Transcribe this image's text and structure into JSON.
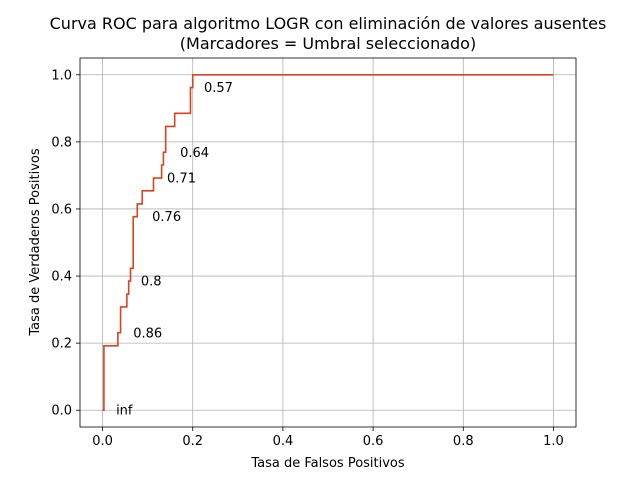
{
  "chart_data": {
    "type": "line",
    "title": "Curva ROC para algoritmo LOGR con eliminación de valores ausentes",
    "subtitle": "(Marcadores = Umbral seleccionado)",
    "xlabel": "Tasa de Falsos Positivos",
    "ylabel": "Tasa de Verdaderos Positivos",
    "xlim": [
      -0.05,
      1.05
    ],
    "ylim": [
      -0.05,
      1.05
    ],
    "xticks": [
      0.0,
      0.2,
      0.4,
      0.6,
      0.8,
      1.0
    ],
    "yticks": [
      0.0,
      0.2,
      0.4,
      0.6,
      0.8,
      1.0
    ],
    "xtick_labels": [
      "0.0",
      "0.2",
      "0.4",
      "0.6",
      "0.8",
      "1.0"
    ],
    "ytick_labels": [
      "0.0",
      "0.2",
      "0.4",
      "0.6",
      "0.8",
      "1.0"
    ],
    "grid": true,
    "line_color": "#d9441c",
    "series": [
      {
        "x": [
          0.0,
          0.0,
          0.0,
          0.003,
          0.003,
          0.034,
          0.034,
          0.04,
          0.04,
          0.054,
          0.054,
          0.058,
          0.058,
          0.062,
          0.062,
          0.068,
          0.068,
          0.077,
          0.077,
          0.088,
          0.088,
          0.113,
          0.113,
          0.131,
          0.131,
          0.135,
          0.135,
          0.14,
          0.14,
          0.16,
          0.16,
          0.195,
          0.195,
          0.2,
          0.2,
          1.0
        ],
        "y": [
          0.0,
          0.0,
          0.0,
          0.0,
          0.192,
          0.192,
          0.231,
          0.231,
          0.308,
          0.308,
          0.346,
          0.346,
          0.385,
          0.385,
          0.423,
          0.423,
          0.577,
          0.577,
          0.615,
          0.615,
          0.654,
          0.654,
          0.692,
          0.692,
          0.731,
          0.731,
          0.769,
          0.769,
          0.846,
          0.846,
          0.885,
          0.885,
          0.962,
          0.962,
          1.0,
          1.0
        ]
      }
    ],
    "annotations": [
      {
        "text": "inf",
        "x": 0.03,
        "y": 0.0
      },
      {
        "text": "0.86",
        "x": 0.068,
        "y": 0.23
      },
      {
        "text": "0.8",
        "x": 0.085,
        "y": 0.385
      },
      {
        "text": "0.76",
        "x": 0.11,
        "y": 0.577
      },
      {
        "text": "0.71",
        "x": 0.143,
        "y": 0.692
      },
      {
        "text": "0.64",
        "x": 0.172,
        "y": 0.769
      },
      {
        "text": "0.57",
        "x": 0.225,
        "y": 0.962
      }
    ]
  }
}
